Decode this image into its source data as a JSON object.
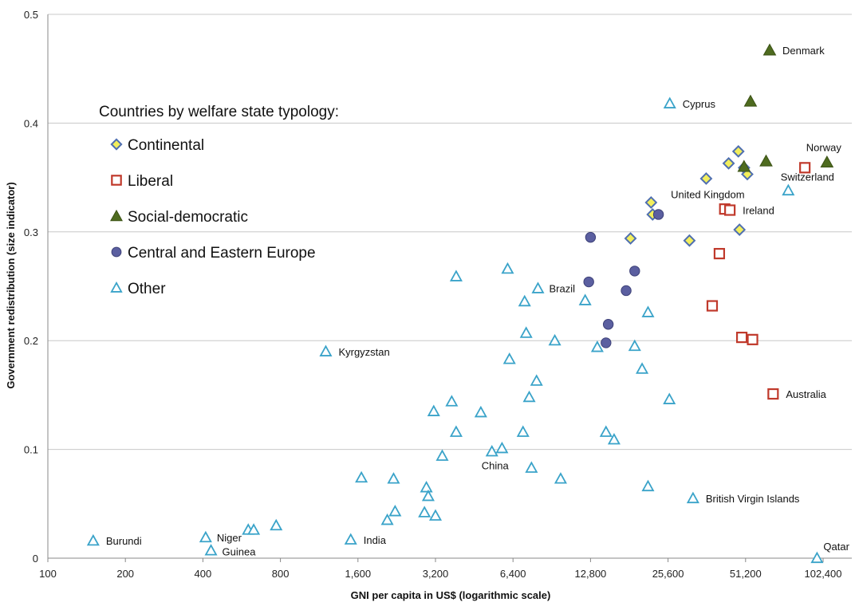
{
  "chart_data": {
    "type": "scatter",
    "xlabel": "GNI per capita in US$ (logarithmic scale)",
    "ylabel": "Government redistribution (size indicator)",
    "x_scale": "log2",
    "xlim": [
      100,
      131072
    ],
    "ylim": [
      0,
      0.5
    ],
    "x_ticks": [
      100,
      200,
      400,
      800,
      1600,
      3200,
      6400,
      12800,
      25600,
      51200,
      102400
    ],
    "x_tick_labels": [
      "100",
      "200",
      "400",
      "800",
      "1,600",
      "3,200",
      "6,400",
      "12,800",
      "25,600",
      "51,200",
      "102,400"
    ],
    "y_ticks": [
      0,
      0.1,
      0.2,
      0.3,
      0.4,
      0.5
    ],
    "y_tick_labels": [
      "0",
      "0.1",
      "0.2",
      "0.3",
      "0.4",
      "0.5"
    ],
    "grid": "horizontal",
    "legend": {
      "title": "Countries by welfare state typology:",
      "placement": "left"
    },
    "colors": {
      "continental_fill": "#f2ee5c",
      "continental_stroke": "#4f6fb1",
      "liberal": "#c0392b",
      "social_democratic": "#4e6b1f",
      "central_eastern": "#5b5fa0",
      "other": "#3aa3c9",
      "grid": "#c8c8c8"
    },
    "series": [
      {
        "name": "Continental",
        "marker": "diamond",
        "points": [
          {
            "x": 22000,
            "y": 0.327
          },
          {
            "x": 22300,
            "y": 0.316
          },
          {
            "x": 18300,
            "y": 0.294
          },
          {
            "x": 31000,
            "y": 0.292
          },
          {
            "x": 36000,
            "y": 0.349
          },
          {
            "x": 44000,
            "y": 0.363
          },
          {
            "x": 48000,
            "y": 0.374
          },
          {
            "x": 50500,
            "y": 0.359
          },
          {
            "x": 52000,
            "y": 0.353
          },
          {
            "x": 48500,
            "y": 0.302
          }
        ]
      },
      {
        "name": "Liberal",
        "marker": "square",
        "points": [
          {
            "x": 87000,
            "y": 0.359,
            "label": ""
          },
          {
            "x": 42500,
            "y": 0.321
          },
          {
            "x": 44500,
            "y": 0.32,
            "label": "Ireland"
          },
          {
            "x": 40500,
            "y": 0.28
          },
          {
            "x": 38000,
            "y": 0.232
          },
          {
            "x": 49500,
            "y": 0.203
          },
          {
            "x": 54500,
            "y": 0.201
          },
          {
            "x": 65500,
            "y": 0.151,
            "label": "Australia"
          }
        ]
      },
      {
        "name": "Social-democratic",
        "marker": "triangle-filled",
        "points": [
          {
            "x": 63500,
            "y": 0.467,
            "label": "Denmark"
          },
          {
            "x": 53500,
            "y": 0.42
          },
          {
            "x": 50500,
            "y": 0.36
          },
          {
            "x": 61500,
            "y": 0.365
          },
          {
            "x": 106000,
            "y": 0.364,
            "label": "Norway"
          }
        ]
      },
      {
        "name": "Central and Eastern Europe",
        "marker": "circle",
        "points": [
          {
            "x": 12800,
            "y": 0.295
          },
          {
            "x": 12600,
            "y": 0.254
          },
          {
            "x": 19000,
            "y": 0.264
          },
          {
            "x": 23500,
            "y": 0.316
          },
          {
            "x": 17600,
            "y": 0.246
          },
          {
            "x": 15000,
            "y": 0.215
          },
          {
            "x": 14700,
            "y": 0.198
          }
        ]
      },
      {
        "name": "Other",
        "marker": "triangle-open",
        "points": [
          {
            "x": 26000,
            "y": 0.418,
            "label": "Cyprus"
          },
          {
            "x": 75000,
            "y": 0.338
          },
          {
            "x": 3850,
            "y": 0.259
          },
          {
            "x": 6100,
            "y": 0.266
          },
          {
            "x": 8000,
            "y": 0.248,
            "label": "Brazil"
          },
          {
            "x": 7100,
            "y": 0.236
          },
          {
            "x": 12200,
            "y": 0.237
          },
          {
            "x": 21400,
            "y": 0.226
          },
          {
            "x": 7200,
            "y": 0.207
          },
          {
            "x": 9300,
            "y": 0.2
          },
          {
            "x": 13600,
            "y": 0.194
          },
          {
            "x": 19000,
            "y": 0.195
          },
          {
            "x": 1200,
            "y": 0.19,
            "label": "Kyrgyzstan"
          },
          {
            "x": 6200,
            "y": 0.183
          },
          {
            "x": 20300,
            "y": 0.174
          },
          {
            "x": 7900,
            "y": 0.163
          },
          {
            "x": 7400,
            "y": 0.148
          },
          {
            "x": 25900,
            "y": 0.146
          },
          {
            "x": 3700,
            "y": 0.144
          },
          {
            "x": 3150,
            "y": 0.135
          },
          {
            "x": 4800,
            "y": 0.134
          },
          {
            "x": 3850,
            "y": 0.116
          },
          {
            "x": 7000,
            "y": 0.116
          },
          {
            "x": 14700,
            "y": 0.116
          },
          {
            "x": 15800,
            "y": 0.109
          },
          {
            "x": 5800,
            "y": 0.101
          },
          {
            "x": 5300,
            "y": 0.098,
            "label": "China"
          },
          {
            "x": 3400,
            "y": 0.094
          },
          {
            "x": 1650,
            "y": 0.074
          },
          {
            "x": 2200,
            "y": 0.073
          },
          {
            "x": 7550,
            "y": 0.083
          },
          {
            "x": 9800,
            "y": 0.073
          },
          {
            "x": 2950,
            "y": 0.065
          },
          {
            "x": 3000,
            "y": 0.057
          },
          {
            "x": 21400,
            "y": 0.066
          },
          {
            "x": 2230,
            "y": 0.043
          },
          {
            "x": 2900,
            "y": 0.042
          },
          {
            "x": 3200,
            "y": 0.039
          },
          {
            "x": 2080,
            "y": 0.035
          },
          {
            "x": 32000,
            "y": 0.055,
            "label": "British Virgin Islands"
          },
          {
            "x": 770,
            "y": 0.03
          },
          {
            "x": 600,
            "y": 0.026
          },
          {
            "x": 630,
            "y": 0.026
          },
          {
            "x": 1500,
            "y": 0.017,
            "label": "India"
          },
          {
            "x": 410,
            "y": 0.019,
            "label": "Niger"
          },
          {
            "x": 430,
            "y": 0.007,
            "label": "Guinea"
          },
          {
            "x": 150,
            "y": 0.016,
            "label": "Burundi"
          },
          {
            "x": 97000,
            "y": 0.0,
            "label": "Qatar"
          }
        ]
      }
    ],
    "annotations": [
      {
        "text": "United Kingdom",
        "x": 36500,
        "y": 0.331
      },
      {
        "text": "Switzerland",
        "x": 89000,
        "y": 0.347
      }
    ]
  }
}
